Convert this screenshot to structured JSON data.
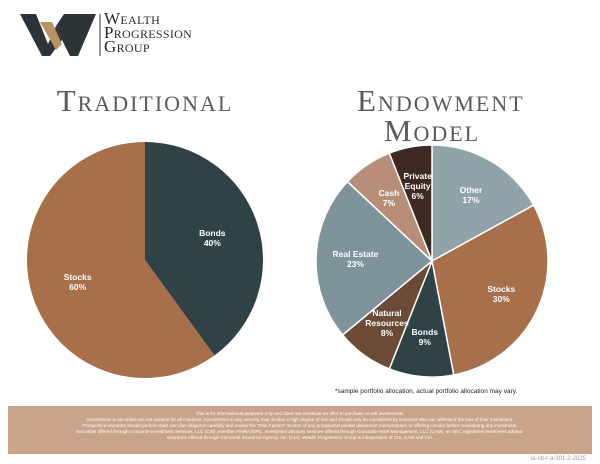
{
  "header": {
    "brand_lines": [
      "Wealth",
      "Progression",
      "Group"
    ]
  },
  "chart_data": [
    {
      "type": "pie",
      "title": "Traditional",
      "categories": [
        "Bonds",
        "Stocks"
      ],
      "values": [
        40,
        60
      ],
      "value_labels": [
        "40%",
        "60%"
      ],
      "colors": [
        "#2f4347",
        "#a86f4b"
      ]
    },
    {
      "type": "pie",
      "title": "Endowment Model",
      "categories": [
        "Other",
        "Stocks",
        "Bonds",
        "Natural Resources",
        "Real Estate",
        "Cash",
        "Private Equity"
      ],
      "values": [
        17,
        30,
        9,
        8,
        23,
        7,
        6
      ],
      "value_labels": [
        "17%",
        "30%",
        "9%",
        "8%",
        "23%",
        "7%",
        "6%"
      ],
      "colors": [
        "#8fa3a8",
        "#a86f4b",
        "#2f4347",
        "#6b4a36",
        "#7e939b",
        "#b98e78",
        "#3f2a22"
      ]
    }
  ],
  "note": "*sample portfolio allocation, actual portfolio allocation may vary.",
  "disclaimer": [
    "This is for informational purposes only and does not constitute an offer to purchase or sell investments.",
    "Investments in securities are not suitable for all investors. Investments in any security may involve a high degree of risk and should only be considered by investors who can withstand the loss of their investment.",
    "Prospective investors should perform their own due diligence carefully and review the \"Risk Factors\" section of any prospective private placement memorandum or offering circular before considering any investment.",
    "Securities offered through Concorde Investment Services, LLC (CIS), member FINRA/SIPC. Investment advisory services offered through Concorde Asset Management, LLC (CAM), an SEC registered investment advisor.",
    "Insurance offered through Concorde Insurance Agency, Inc. (CIA). Wealth Progression Group is independent of CIS, CAM and CIA."
  ],
  "code": "ia-sb-r-a-301-2-2025"
}
